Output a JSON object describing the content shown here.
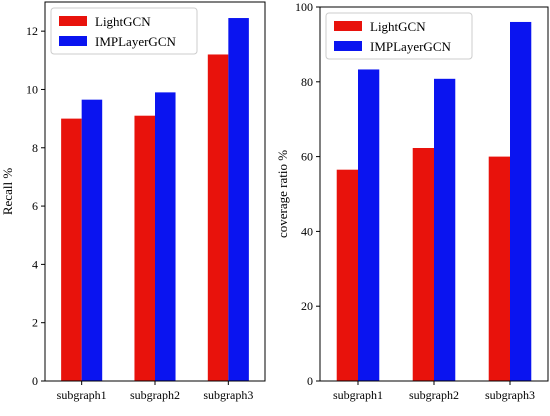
{
  "chart_data": [
    {
      "type": "bar",
      "categories": [
        "subgraph1",
        "subgraph2",
        "subgraph3"
      ],
      "series": [
        {
          "name": "LightGCN",
          "color": "#e8120c",
          "values": [
            9.0,
            9.1,
            11.2
          ]
        },
        {
          "name": "IMPLayerGCN",
          "color": "#0a14f0",
          "values": [
            9.65,
            9.9,
            12.45
          ]
        }
      ],
      "ylabel": "Recall %",
      "ylim": [
        0,
        13
      ],
      "yticks": [
        0,
        2,
        4,
        6,
        8,
        10,
        12
      ],
      "legend": "top-left",
      "grid": false
    },
    {
      "type": "bar",
      "categories": [
        "subgraph1",
        "subgraph2",
        "subgraph3"
      ],
      "series": [
        {
          "name": "LightGCN",
          "color": "#e8120c",
          "values": [
            56.5,
            62.3,
            60.0
          ]
        },
        {
          "name": "IMPLayerGCN",
          "color": "#0a14f0",
          "values": [
            83.3,
            80.8,
            96.0
          ]
        }
      ],
      "ylabel": "coverage ratio %",
      "ylim": [
        0,
        100
      ],
      "yticks": [
        0,
        20,
        40,
        60,
        80,
        100
      ],
      "legend": "top-left",
      "grid": false
    }
  ]
}
